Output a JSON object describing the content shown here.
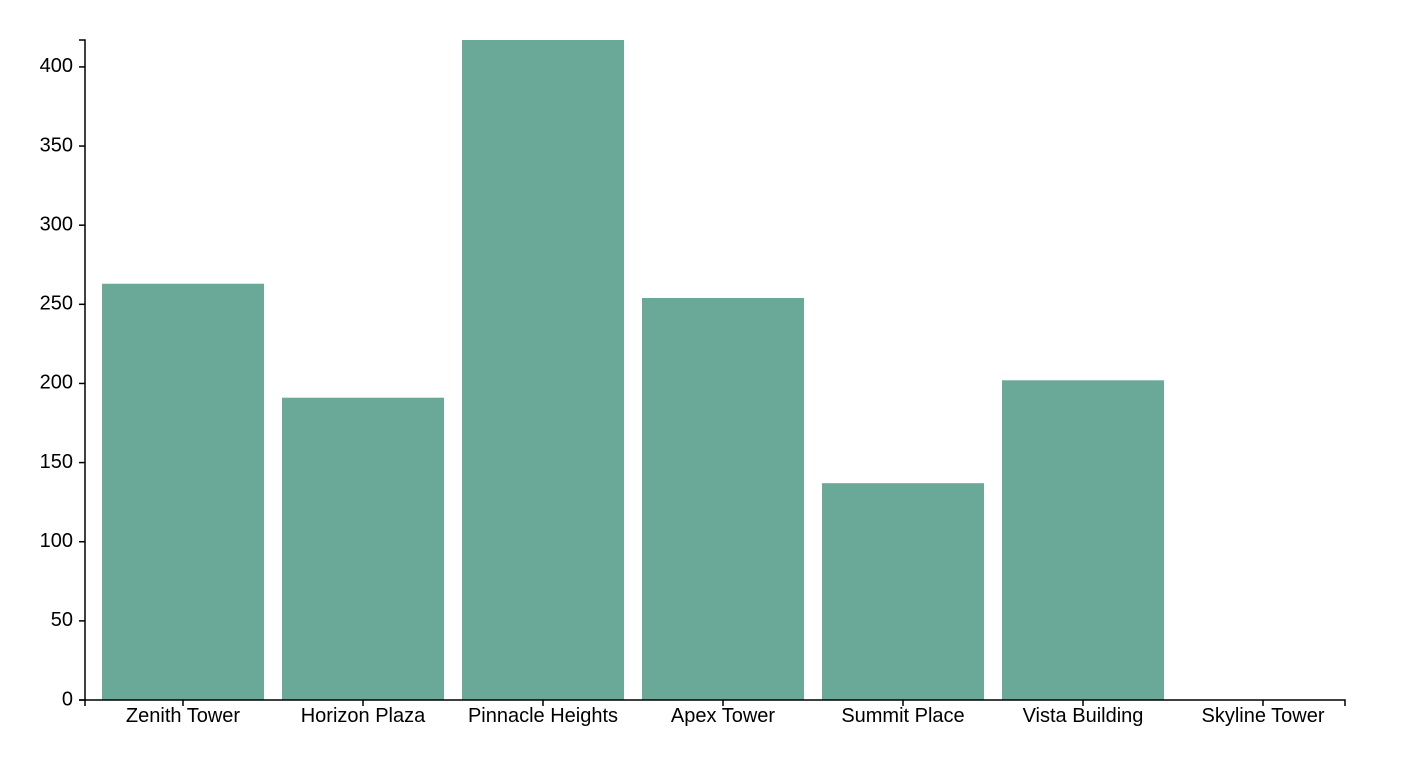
{
  "chart_data": {
    "type": "bar",
    "title": "",
    "xlabel": "",
    "ylabel": "",
    "categories": [
      "Zenith Tower",
      "Horizon Plaza",
      "Pinnacle Heights",
      "Apex Tower",
      "Summit Place",
      "Vista Building",
      "Skyline Tower"
    ],
    "values": [
      263,
      191,
      417,
      254,
      137,
      202,
      0
    ],
    "ylim": [
      0,
      417
    ],
    "yticks": [
      0,
      50,
      100,
      150,
      200,
      250,
      300,
      350,
      400
    ],
    "bar_color": "#6aa998",
    "grid": false,
    "legend": "none"
  }
}
